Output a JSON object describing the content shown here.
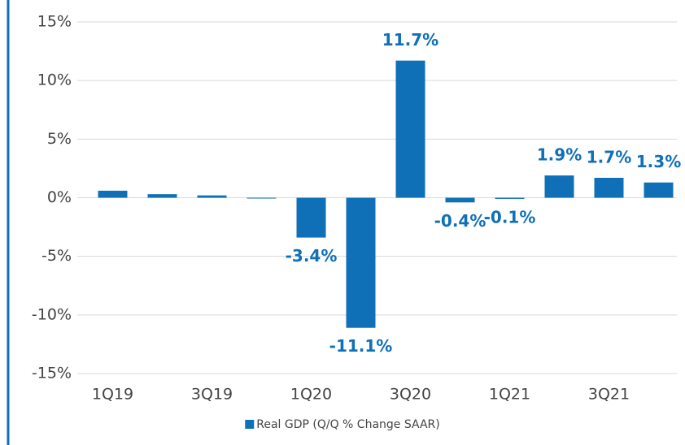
{
  "chart_data": {
    "type": "bar",
    "categories": [
      "1Q19",
      null,
      "3Q19",
      null,
      "1Q20",
      null,
      "3Q20",
      null,
      "1Q21",
      null,
      "3Q21",
      null
    ],
    "series": [
      {
        "name": "Real GDP (Q/Q % Change SAAR)",
        "color": "#0f70b7",
        "values": [
          0.6,
          0.3,
          0.2,
          -0.05,
          -3.4,
          -11.1,
          11.7,
          -0.4,
          -0.1,
          1.9,
          1.7,
          1.3
        ],
        "value_labels": [
          null,
          null,
          null,
          null,
          "-3.4%",
          "-11.1%",
          "11.7%",
          "-0.4%",
          "-0.1%",
          "1.9%",
          "1.7%",
          "1.3%"
        ]
      }
    ],
    "ylim": [
      -15,
      15
    ],
    "yticks": [
      {
        "value": -15,
        "label": "-15%"
      },
      {
        "value": -10,
        "label": "-10%"
      },
      {
        "value": -5,
        "label": "-5%"
      },
      {
        "value": 0,
        "label": "0%"
      },
      {
        "value": 5,
        "label": "5%"
      },
      {
        "value": 10,
        "label": "10%"
      },
      {
        "value": 15,
        "label": "15%"
      }
    ],
    "grid": true,
    "legend": "bottom"
  }
}
